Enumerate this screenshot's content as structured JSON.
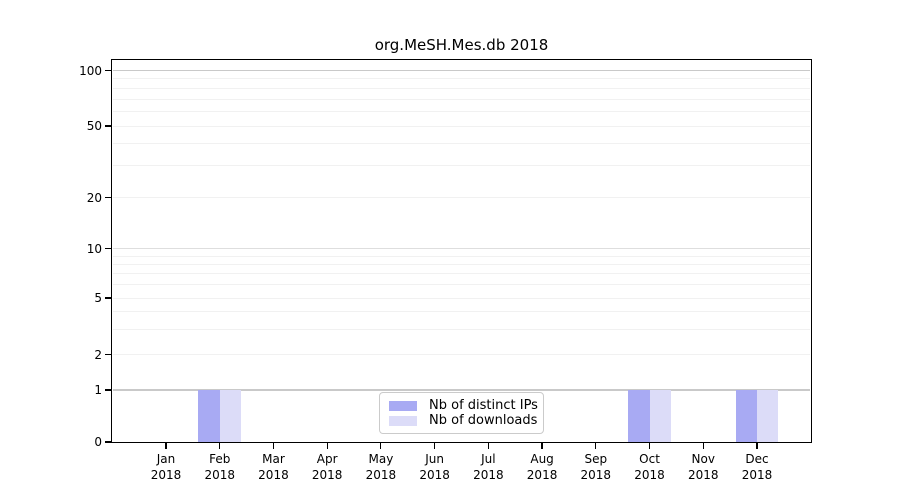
{
  "figure": {
    "background": "#ffffff"
  },
  "chart_data": {
    "type": "bar",
    "title": "org.MeSH.Mes.db 2018",
    "x": {
      "months": [
        "Jan",
        "Feb",
        "Mar",
        "Apr",
        "May",
        "Jun",
        "Jul",
        "Aug",
        "Sep",
        "Oct",
        "Nov",
        "Dec"
      ],
      "year": "2018"
    },
    "series": [
      {
        "name": "Nb of distinct IPs",
        "color": "#a8aaf3",
        "values": [
          0,
          1,
          0,
          0,
          0,
          0,
          0,
          0,
          0,
          1,
          0,
          1
        ]
      },
      {
        "name": "Nb of downloads",
        "color": "#dcdcf8",
        "values": [
          0,
          1,
          0,
          0,
          0,
          0,
          0,
          0,
          0,
          1,
          0,
          1
        ]
      }
    ],
    "y_axis": {
      "scale": "log-like (log10 of value+1), 0 at baseline",
      "tick_labels": [
        "0",
        "1",
        "2",
        "5",
        "10",
        "20",
        "50",
        "100"
      ],
      "tick_values": [
        0,
        1,
        2,
        5,
        10,
        20,
        50,
        100
      ],
      "minor_gridline_values": [
        3,
        4,
        6,
        7,
        8,
        9,
        30,
        40,
        60,
        70,
        80,
        90
      ],
      "major_gridline_values": [
        1,
        10,
        100
      ],
      "ylim": [
        0,
        115
      ]
    },
    "legend": {
      "position": "lower-center"
    },
    "colors": {
      "axis": "#000000",
      "grid_minor": "#f1f1f1",
      "grid_major": "#c9c9c9",
      "legend_border": "#cbcbcb"
    },
    "grid": true
  }
}
